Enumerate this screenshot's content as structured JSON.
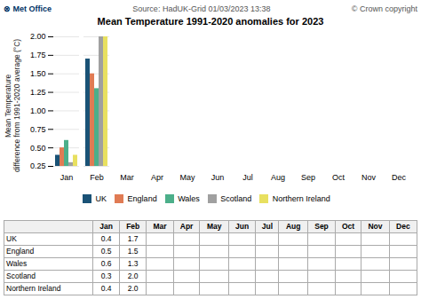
{
  "chart_data": {
    "type": "bar",
    "title": "Mean Temperature 1991-2020 anomalies for 2023",
    "annotations": [
      "⊗ Met Office",
      "Source: HadUK-Grid 01/03/2023 13:38",
      "© Crown copyright"
    ],
    "y_label": "Mean Temperature\ndifference from 1991-2020 average (°C)",
    "categories": [
      "Jan",
      "Feb",
      "Mar",
      "Apr",
      "May",
      "Jun",
      "Jul",
      "Aug",
      "Sep",
      "Oct",
      "Nov",
      "Dec"
    ],
    "series": [
      {
        "name": "UK",
        "color": "#1a5276",
        "values": [
          0.4,
          1.7,
          null,
          null,
          null,
          null,
          null,
          null,
          null,
          null,
          null,
          null
        ],
        "value_labels": [
          "0.4",
          "1.7",
          null,
          null,
          null,
          null,
          null,
          null,
          null,
          null,
          null,
          null
        ]
      },
      {
        "name": "England",
        "color": "#e07b54",
        "values": [
          0.5,
          1.5,
          null,
          null,
          null,
          null,
          null,
          null,
          null,
          null,
          null,
          null
        ],
        "value_labels": [
          "0.5",
          "1.5",
          null,
          null,
          null,
          null,
          null,
          null,
          null,
          null,
          null,
          null
        ]
      },
      {
        "name": "Wales",
        "color": "#4caf8a",
        "values": [
          0.6,
          1.3,
          null,
          null,
          null,
          null,
          null,
          null,
          null,
          null,
          null,
          null
        ],
        "value_labels": [
          "0.6",
          "1.3",
          null,
          null,
          null,
          null,
          null,
          null,
          null,
          null,
          null,
          null
        ]
      },
      {
        "name": "Scotland",
        "color": "#a0a0a0",
        "values": [
          0.3,
          2.0,
          null,
          null,
          null,
          null,
          null,
          null,
          null,
          null,
          null,
          null
        ],
        "value_labels": [
          "0.3",
          "2.0",
          null,
          null,
          null,
          null,
          null,
          null,
          null,
          null,
          null,
          null
        ]
      },
      {
        "name": "Northern Ireland",
        "color": "#e8e060",
        "values": [
          0.4,
          2.0,
          null,
          null,
          null,
          null,
          null,
          null,
          null,
          null,
          null,
          null
        ],
        "value_labels": [
          "0.4",
          "2.0",
          null,
          null,
          null,
          null,
          null,
          null,
          null,
          null,
          null,
          null
        ]
      }
    ],
    "ylim": [
      0.25,
      2.0
    ],
    "yticks": [
      0.25,
      {
        "value": 0.5,
        "label": "0.50"
      },
      0.75,
      {
        "value": 1,
        "label": "1.00"
      },
      1.25,
      {
        "value": 1.5,
        "label": "1.50"
      },
      1.75,
      {
        "value": 2,
        "label": "2.00"
      }
    ],
    "grid": true,
    "legend": "bottom"
  }
}
